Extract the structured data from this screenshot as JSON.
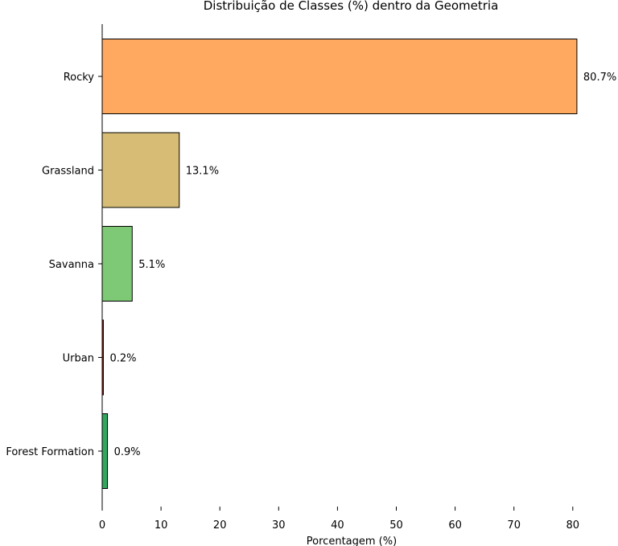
{
  "chart_data": {
    "type": "bar",
    "orientation": "horizontal",
    "title": "Distribuição de Classes (%) dentro da Geometria",
    "xlabel": "Porcentagem (%)",
    "ylabel": "",
    "xlim": [
      0,
      84
    ],
    "x_ticks": [
      0,
      10,
      20,
      30,
      40,
      50,
      60,
      70,
      80
    ],
    "grid": false,
    "categories": [
      "Rocky",
      "Grassland",
      "Savanna",
      "Urban",
      "Forest Formation"
    ],
    "values": [
      80.7,
      13.1,
      5.1,
      0.2,
      0.9
    ],
    "data_labels": [
      "80.7%",
      "13.1%",
      "5.1%",
      "0.2%",
      "0.9%"
    ],
    "colors": [
      "#ffa960",
      "#d6bc74",
      "#7dc975",
      "#ae2b26",
      "#32a65e"
    ]
  }
}
